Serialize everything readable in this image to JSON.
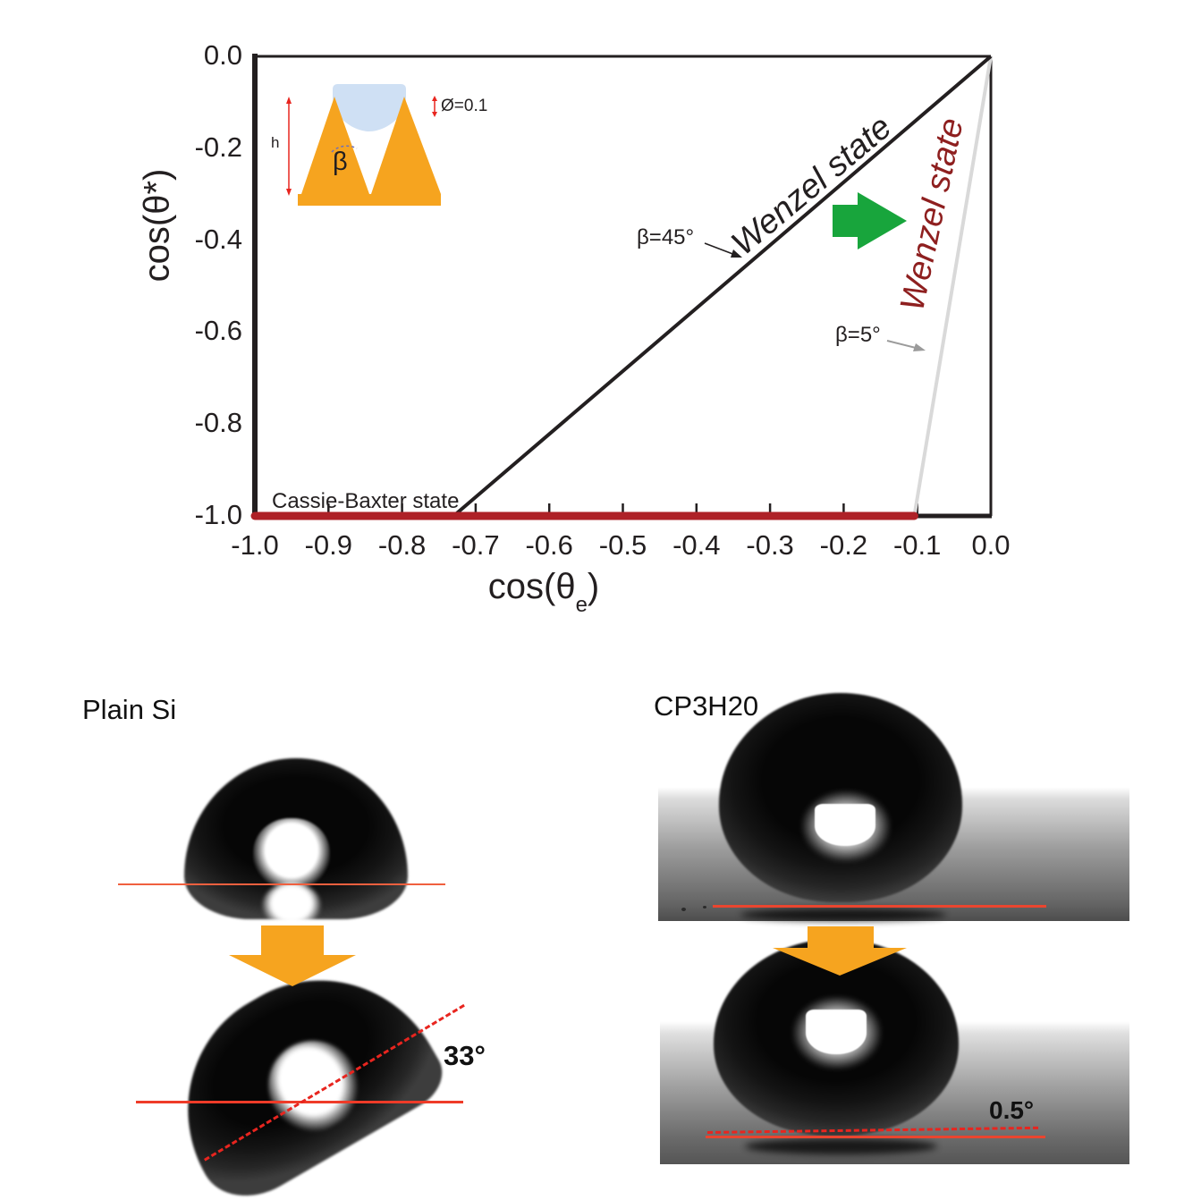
{
  "colors": {
    "black": "#231f20",
    "orange_arrow": "#f6a41f",
    "green_arrow": "#18a53c",
    "cassie_red_line": "#ae2127",
    "wenzel_red_text": "#8e1f1f",
    "gray_line": "#d9d9d9",
    "annotation_red_line": "#ef4b33",
    "dashed_red_line": "#e8251f",
    "inset_droplet_blue": "#cfe0f4"
  },
  "chart_data": {
    "type": "line",
    "title": "",
    "xlabel": "cos(θe)",
    "ylabel": "cos(θ*)",
    "xlabel_parts": {
      "prefix": "cos(θ",
      "sub": "e",
      "suffix": ")"
    },
    "xlim": [
      -1.0,
      0.0
    ],
    "ylim": [
      -1.0,
      0.0
    ],
    "x_ticks": [
      -1.0,
      -0.9,
      -0.8,
      -0.7,
      -0.6,
      -0.5,
      -0.4,
      -0.3,
      -0.2,
      -0.1,
      0.0
    ],
    "y_ticks": [
      0.0,
      -0.2,
      -0.4,
      -0.6,
      -0.8,
      -1.0
    ],
    "grid": false,
    "legend": "none",
    "series": [
      {
        "name": "Wenzel state (β=45°)",
        "color": "#231f20",
        "points": [
          [
            0.0,
            0.0
          ],
          [
            -0.73,
            -1.0
          ]
        ]
      },
      {
        "name": "Wenzel state (β=5°)",
        "color": "#d9d9d9",
        "points": [
          [
            0.0,
            0.0
          ],
          [
            -0.104,
            -1.0
          ]
        ]
      },
      {
        "name": "Cassie-Baxter state",
        "color": "#ae2127",
        "points": [
          [
            -1.0,
            -1.0
          ],
          [
            -0.104,
            -1.0
          ]
        ]
      }
    ],
    "annotations": {
      "wenzel_black": "Wenzel state",
      "wenzel_red": "Wenzel state",
      "beta45": "β=45°",
      "beta5": "β=5°",
      "cassie": "Cassie-Baxter state"
    },
    "inset": {
      "height_label": "h",
      "angle_label": "β",
      "solid_fraction_label": "Ø=0.1"
    }
  },
  "photos": {
    "left": {
      "label": "Plain Si",
      "tilt_angle": "33°"
    },
    "right": {
      "label": "CP3H20",
      "tilt_angle": "0.5°"
    }
  }
}
